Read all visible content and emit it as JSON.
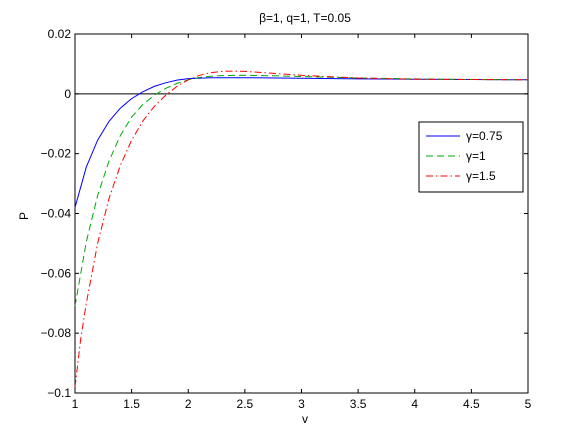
{
  "chart_data": {
    "type": "line",
    "title": "β=1, q=1, T=0.05",
    "xlabel": "v",
    "ylabel": "P",
    "xlim": [
      1,
      5
    ],
    "ylim": [
      -0.1,
      0.02
    ],
    "xticks": [
      1,
      1.5,
      2,
      2.5,
      3,
      3.5,
      4,
      4.5,
      5
    ],
    "xtick_labels": [
      "1",
      "1.5",
      "2",
      "2.5",
      "3",
      "3.5",
      "4",
      "4.5",
      "5"
    ],
    "yticks": [
      -0.1,
      -0.08,
      -0.06,
      -0.04,
      -0.02,
      0,
      0.02
    ],
    "ytick_labels": [
      "−0.1",
      "−0.08",
      "−0.06",
      "−0.04",
      "−0.02",
      "0",
      "0.02"
    ],
    "grid": false,
    "legend_position": "right",
    "reference_line": {
      "y": 0,
      "color": "#000000"
    },
    "series": [
      {
        "name": "γ=0.75",
        "color": "#0000ff",
        "dash": "solid",
        "x": [
          1.0,
          1.1,
          1.2,
          1.3,
          1.4,
          1.5,
          1.6,
          1.7,
          1.8,
          1.9,
          2.0,
          2.2,
          2.5,
          3.0,
          3.5,
          4.0,
          4.5,
          5.0
        ],
        "y": [
          -0.038,
          -0.0245,
          -0.0155,
          -0.0092,
          -0.0048,
          -0.0016,
          0.0007,
          0.0025,
          0.0037,
          0.0046,
          0.0051,
          0.0054,
          0.0054,
          0.0052,
          0.005,
          0.0049,
          0.0048,
          0.0047
        ]
      },
      {
        "name": "γ=1",
        "color": "#00aa00",
        "dash": "dashed",
        "x": [
          1.0,
          1.1,
          1.2,
          1.3,
          1.4,
          1.5,
          1.6,
          1.7,
          1.8,
          1.9,
          2.0,
          2.1,
          2.2,
          2.3,
          2.5,
          2.8,
          3.0,
          3.5,
          4.0,
          4.5,
          5.0
        ],
        "y": [
          -0.071,
          -0.0495,
          -0.034,
          -0.0225,
          -0.014,
          -0.0078,
          -0.0035,
          -0.0005,
          0.0018,
          0.0035,
          0.0047,
          0.0055,
          0.0059,
          0.0061,
          0.0062,
          0.006,
          0.0058,
          0.0053,
          0.005,
          0.0048,
          0.0047
        ]
      },
      {
        "name": "γ=1.5",
        "color": "#ff0000",
        "dash": "dashdot",
        "x": [
          1.0,
          1.05,
          1.1,
          1.2,
          1.3,
          1.4,
          1.5,
          1.6,
          1.7,
          1.8,
          1.9,
          2.0,
          2.1,
          2.2,
          2.3,
          2.4,
          2.5,
          2.7,
          3.0,
          3.5,
          4.0,
          4.5,
          5.0
        ],
        "y": [
          -0.098,
          -0.082,
          -0.07,
          -0.05,
          -0.035,
          -0.024,
          -0.0155,
          -0.009,
          -0.0042,
          -0.0005,
          0.0025,
          0.0047,
          0.0062,
          0.0071,
          0.0075,
          0.0076,
          0.0075,
          0.007,
          0.0062,
          0.0053,
          0.0049,
          0.0048,
          0.0047
        ]
      }
    ]
  }
}
